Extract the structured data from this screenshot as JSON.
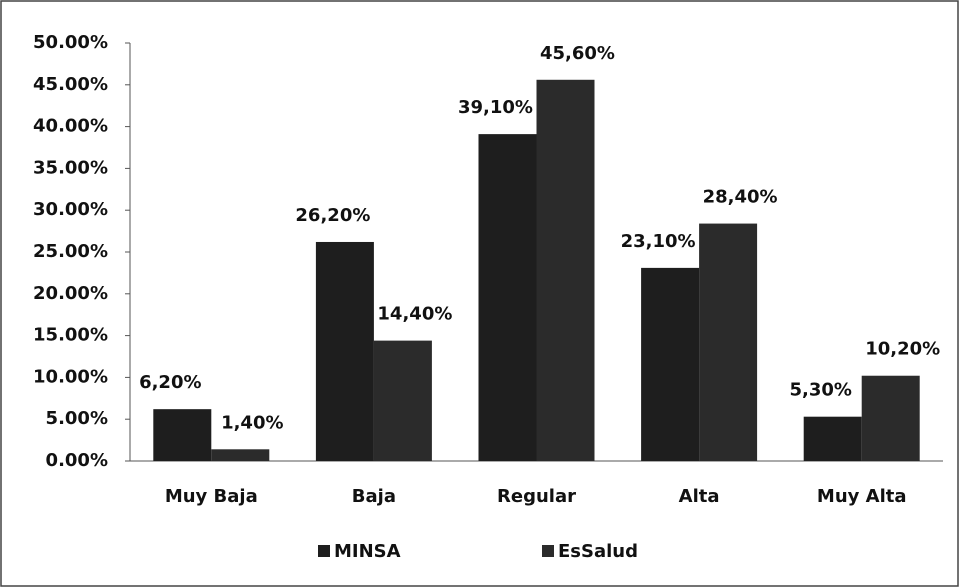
{
  "chart_data": {
    "type": "bar",
    "categories": [
      "Muy Baja",
      "Baja",
      "Regular",
      "Alta",
      "Muy Alta"
    ],
    "series": [
      {
        "name": "MINSA",
        "color": "#1e1e1e",
        "values": [
          6.2,
          26.2,
          39.1,
          23.1,
          5.3
        ],
        "value_labels": [
          "6,20%",
          "26,20%",
          "39,10%",
          "23,10%",
          "5,30%"
        ]
      },
      {
        "name": "EsSalud",
        "color": "#2b2b2b",
        "values": [
          1.4,
          14.4,
          45.6,
          28.4,
          10.2
        ],
        "value_labels": [
          "1,40%",
          "14,40%",
          "45,60%",
          "28,40%",
          "10,20%"
        ]
      }
    ],
    "ylim": [
      0,
      50
    ],
    "yticks": [
      {
        "value": 0,
        "label": "0.00%"
      },
      {
        "value": 5,
        "label": "5.00%"
      },
      {
        "value": 10,
        "label": "10.00%"
      },
      {
        "value": 15,
        "label": "15.00%"
      },
      {
        "value": 20,
        "label": "20.00%"
      },
      {
        "value": 25,
        "label": "25.00%"
      },
      {
        "value": 30,
        "label": "30.00%"
      },
      {
        "value": 35,
        "label": "35.00%"
      },
      {
        "value": 40,
        "label": "40.00%"
      },
      {
        "value": 45,
        "label": "45.00%"
      },
      {
        "value": 50,
        "label": "50.00%"
      }
    ],
    "legend": "bottom"
  }
}
